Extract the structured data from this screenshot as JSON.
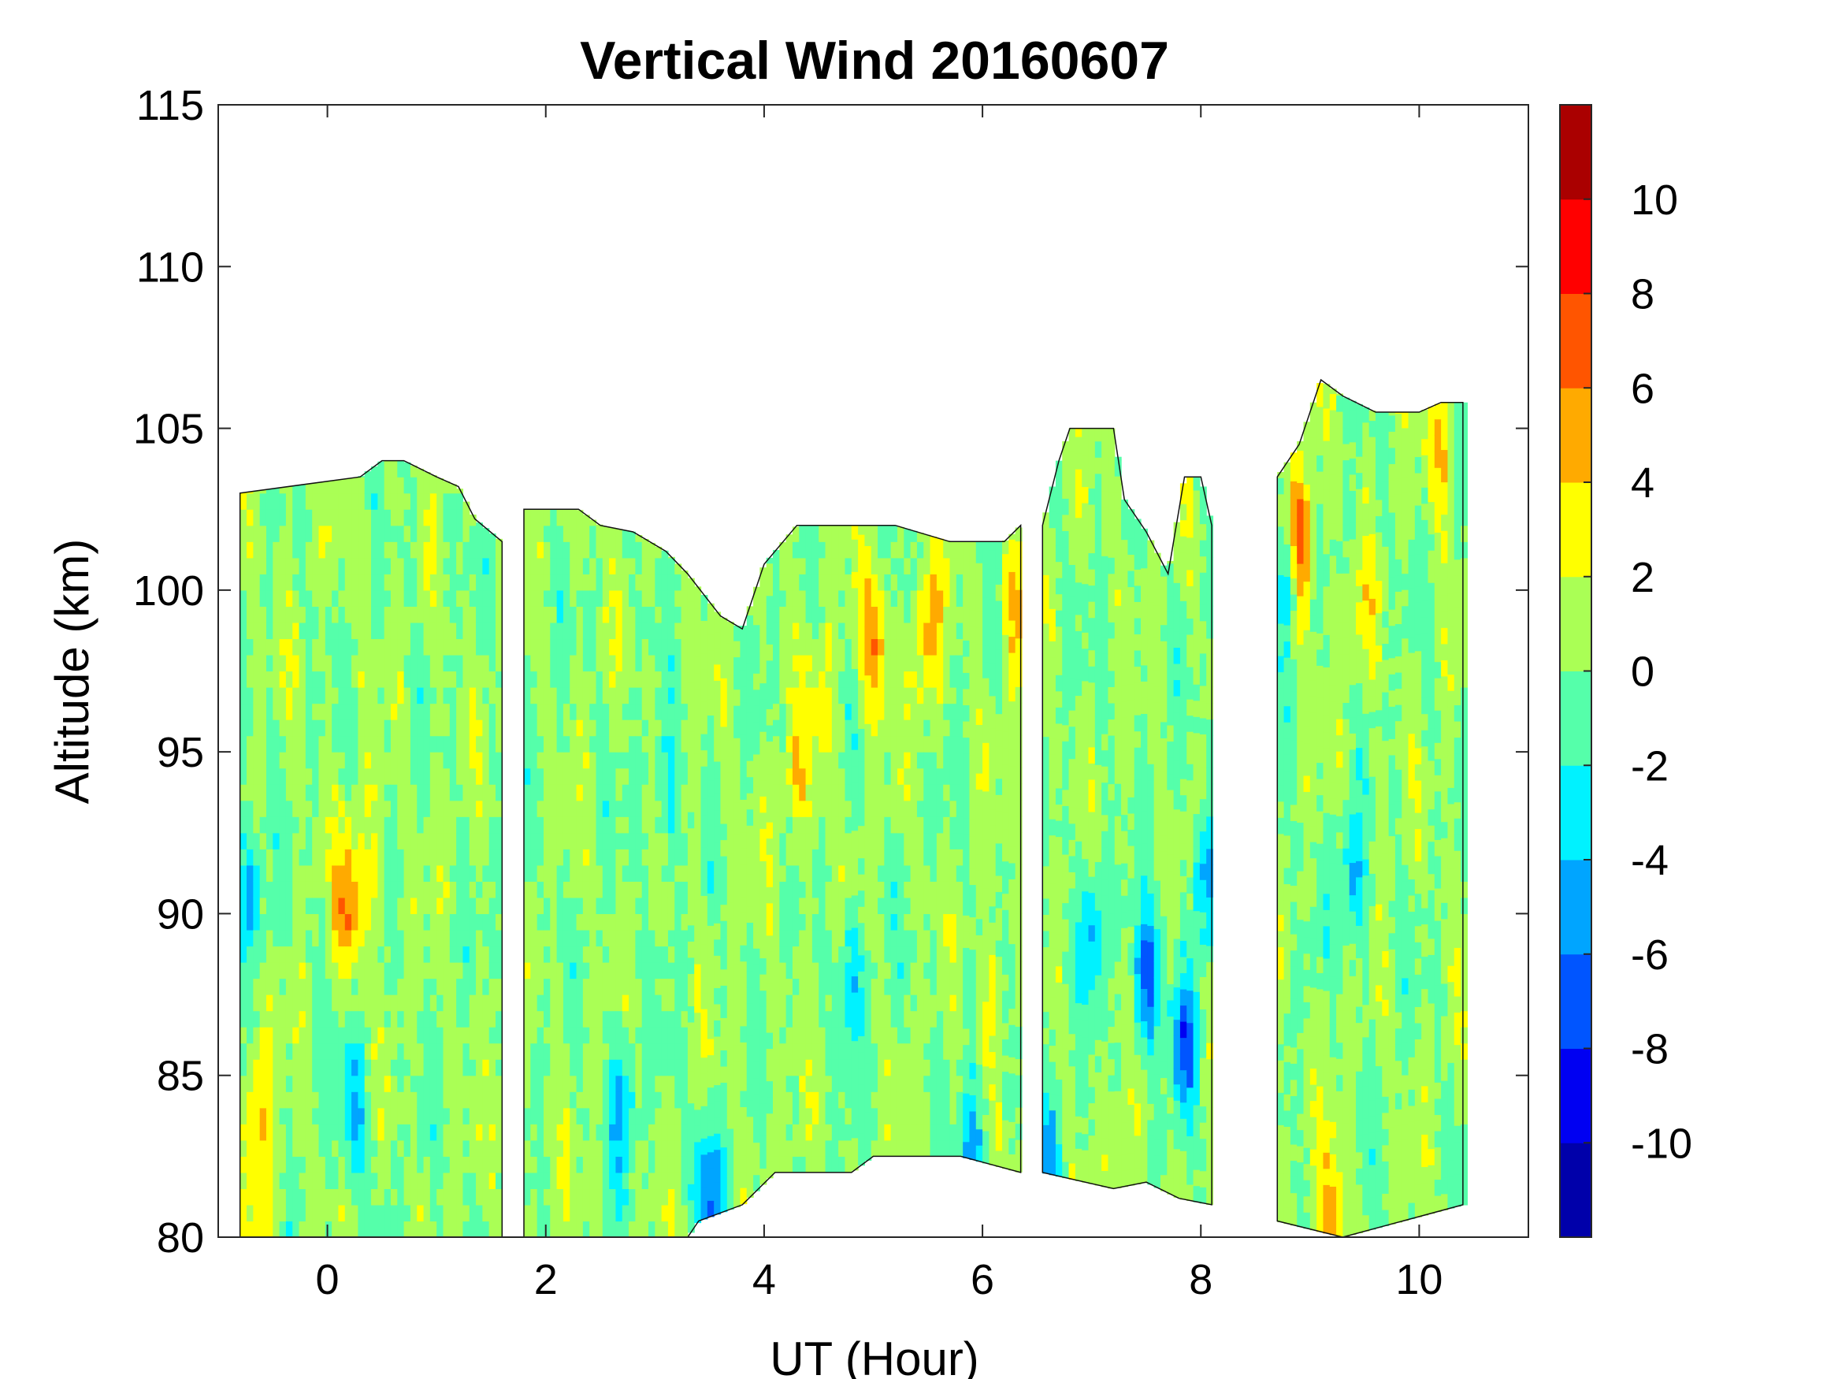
{
  "chart_data": {
    "type": "heatmap",
    "subtype": "filled-contour",
    "title": "Vertical Wind 20160607",
    "xlabel": "UT (Hour)",
    "ylabel": "Altitude (km)",
    "xlim": [
      -1,
      11
    ],
    "ylim": [
      80,
      115
    ],
    "xticks": [
      0,
      2,
      4,
      6,
      8,
      10
    ],
    "yticks": [
      80,
      85,
      90,
      95,
      100,
      105,
      110,
      115
    ],
    "colorbar": {
      "levels": [
        -12,
        -10,
        -8,
        -6,
        -4,
        -2,
        0,
        2,
        4,
        6,
        8,
        10,
        12
      ],
      "tick_values": [
        -10,
        -8,
        -6,
        -4,
        -2,
        0,
        2,
        4,
        6,
        8,
        10
      ],
      "tick_labels": [
        "-10",
        "-8",
        "-6",
        "-4",
        "-2",
        "0",
        "2",
        "4",
        "6",
        "8",
        "10"
      ],
      "colors": [
        "#0000aa",
        "#0000f2",
        "#0055ff",
        "#00a5ff",
        "#00f2ff",
        "#55ffaa",
        "#aaff55",
        "#ffff00",
        "#ffaa00",
        "#ff5500",
        "#ff0000",
        "#aa0000"
      ]
    },
    "data_segments": [
      {
        "x_range": [
          -0.8,
          1.6
        ],
        "top_profile": [
          [
            -0.8,
            103
          ],
          [
            0.3,
            103.5
          ],
          [
            0.5,
            104
          ],
          [
            0.7,
            104
          ],
          [
            1.0,
            103.5
          ],
          [
            1.2,
            103.2
          ],
          [
            1.35,
            102.2
          ],
          [
            1.6,
            101.5
          ]
        ],
        "bottom_profile": [
          [
            -0.8,
            80
          ],
          [
            1.6,
            80
          ]
        ],
        "features": [
          {
            "x": 0.2,
            "y": 90.5,
            "value": 6
          },
          {
            "x": -0.6,
            "y": 81,
            "value": 4
          },
          {
            "x": -0.65,
            "y": 84.5,
            "value": 4
          },
          {
            "x": 0.25,
            "y": 84,
            "value": -4
          },
          {
            "x": -0.7,
            "y": 91,
            "value": -4
          },
          {
            "x": 0.45,
            "y": 91.5,
            "value": 3
          }
        ]
      },
      {
        "x_range": [
          1.8,
          6.35
        ],
        "top_profile": [
          [
            1.8,
            102.5
          ],
          [
            2.3,
            102.5
          ],
          [
            2.5,
            102
          ],
          [
            2.8,
            101.8
          ],
          [
            3.1,
            101.2
          ],
          [
            3.3,
            100.5
          ],
          [
            3.6,
            99.2
          ],
          [
            3.8,
            98.8
          ],
          [
            4.0,
            100.8
          ],
          [
            4.3,
            102
          ],
          [
            4.8,
            102
          ],
          [
            5.2,
            102
          ],
          [
            5.7,
            101.5
          ],
          [
            6.2,
            101.5
          ],
          [
            6.35,
            102
          ]
        ],
        "bottom_profile": [
          [
            1.8,
            80
          ],
          [
            3.3,
            80
          ],
          [
            3.4,
            80.5
          ],
          [
            3.8,
            81
          ],
          [
            4.1,
            82
          ],
          [
            4.8,
            82
          ],
          [
            5.0,
            82.5
          ],
          [
            5.8,
            82.5
          ],
          [
            6.35,
            82
          ]
        ],
        "features": [
          {
            "x": 5.0,
            "y": 98.5,
            "value": 6
          },
          {
            "x": 5.5,
            "y": 98.5,
            "value": 5
          },
          {
            "x": 6.3,
            "y": 99.5,
            "value": 5
          },
          {
            "x": 4.5,
            "y": 96,
            "value": 3
          },
          {
            "x": 4.3,
            "y": 94,
            "value": 3
          },
          {
            "x": 3.1,
            "y": 93.5,
            "value": -3
          },
          {
            "x": 4.8,
            "y": 88,
            "value": -4
          },
          {
            "x": 3.5,
            "y": 81.5,
            "value": -6
          },
          {
            "x": 5.9,
            "y": 82.5,
            "value": -5
          },
          {
            "x": 6.1,
            "y": 87.5,
            "value": 3
          },
          {
            "x": 2.7,
            "y": 84,
            "value": -4
          }
        ]
      },
      {
        "x_range": [
          6.55,
          8.1
        ],
        "top_profile": [
          [
            6.55,
            102
          ],
          [
            6.7,
            104
          ],
          [
            6.8,
            105
          ],
          [
            7.2,
            105
          ],
          [
            7.3,
            102.8
          ],
          [
            7.5,
            101.8
          ],
          [
            7.7,
            100.5
          ],
          [
            7.85,
            103.5
          ],
          [
            8.0,
            103.5
          ],
          [
            8.1,
            102
          ]
        ],
        "bottom_profile": [
          [
            6.55,
            82
          ],
          [
            7.2,
            81.5
          ],
          [
            7.5,
            81.7
          ],
          [
            7.8,
            81.2
          ],
          [
            8.1,
            81
          ]
        ],
        "features": [
          {
            "x": 7.85,
            "y": 86,
            "value": -6
          },
          {
            "x": 7.5,
            "y": 88,
            "value": -7
          },
          {
            "x": 7.0,
            "y": 89.5,
            "value": -4
          },
          {
            "x": 8.05,
            "y": 91,
            "value": -5
          },
          {
            "x": 6.6,
            "y": 82.5,
            "value": -4
          },
          {
            "x": 7.3,
            "y": 82,
            "value": 3
          }
        ]
      },
      {
        "x_range": [
          8.7,
          10.4
        ],
        "top_profile": [
          [
            8.7,
            103.5
          ],
          [
            8.9,
            104.5
          ],
          [
            9.1,
            106.5
          ],
          [
            9.3,
            106
          ],
          [
            9.6,
            105.5
          ],
          [
            10.0,
            105.5
          ],
          [
            10.2,
            105.8
          ],
          [
            10.4,
            105.8
          ]
        ],
        "bottom_profile": [
          [
            8.7,
            80.5
          ],
          [
            9.3,
            80
          ],
          [
            10.4,
            81
          ]
        ],
        "features": [
          {
            "x": 8.9,
            "y": 101.5,
            "value": 9
          },
          {
            "x": 8.8,
            "y": 100.5,
            "value": -5
          },
          {
            "x": 9.5,
            "y": 99,
            "value": 3
          },
          {
            "x": 9.4,
            "y": 91,
            "value": -4
          },
          {
            "x": 9.2,
            "y": 81,
            "value": 5
          },
          {
            "x": 10.2,
            "y": 104,
            "value": 4
          }
        ]
      }
    ]
  }
}
